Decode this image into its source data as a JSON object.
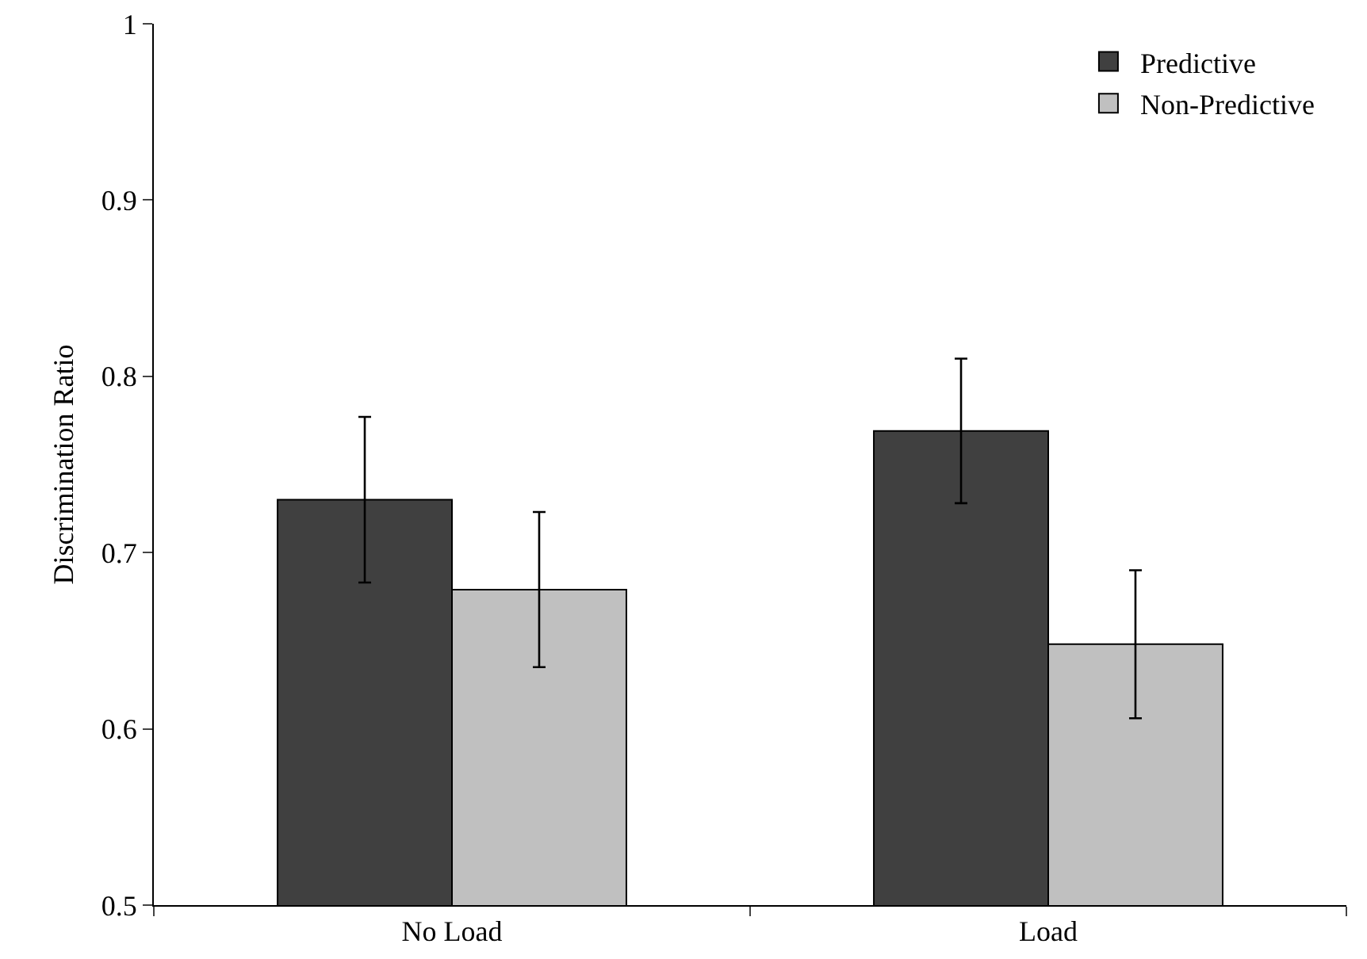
{
  "chart_data": {
    "type": "bar",
    "ylabel": "Discrimination Ratio",
    "categories": [
      "No Load",
      "Load"
    ],
    "series": [
      {
        "name": "Predictive",
        "color": "#404040",
        "values": [
          0.73,
          0.769
        ],
        "errors": [
          0.047,
          0.041
        ]
      },
      {
        "name": "Non-Predictive",
        "color": "#c0c0c0",
        "values": [
          0.679,
          0.648
        ],
        "errors": [
          0.044,
          0.042
        ]
      }
    ],
    "ylim": [
      0.5,
      1
    ],
    "yticks": [
      0.5,
      0.6,
      0.7,
      0.8,
      0.9,
      1
    ],
    "grid": false,
    "legend": "top right"
  }
}
